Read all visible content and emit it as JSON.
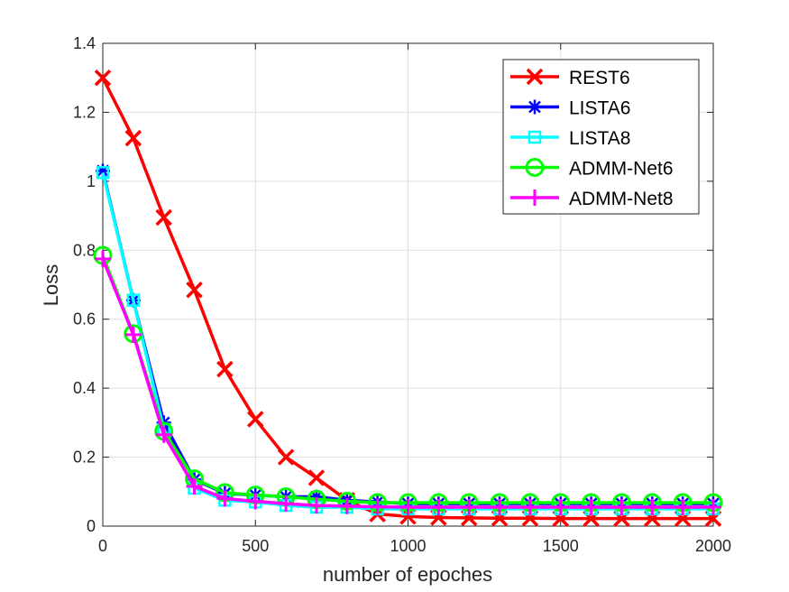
{
  "chart_data": {
    "type": "line",
    "title": "",
    "xlabel": "number of epoches",
    "ylabel": "Loss",
    "xlim": [
      0,
      2000
    ],
    "ylim": [
      0,
      1.4
    ],
    "xticks": [
      0,
      500,
      1000,
      1500,
      2000
    ],
    "xtick_labels": [
      "0",
      "500",
      "1000",
      "1500",
      "2000"
    ],
    "yticks": [
      0,
      0.2,
      0.4,
      0.6,
      0.8,
      1.0,
      1.2,
      1.4
    ],
    "ytick_labels": [
      "0",
      "0.2",
      "0.4",
      "0.6",
      "0.8",
      "1",
      "1.2",
      "1.4"
    ],
    "grid": true,
    "legend_position": "top-right",
    "x": [
      0,
      100,
      200,
      300,
      400,
      500,
      600,
      700,
      800,
      900,
      1000,
      1100,
      1200,
      1300,
      1400,
      1500,
      1600,
      1700,
      1800,
      1900,
      2000
    ],
    "series": [
      {
        "name": "REST6",
        "color": "#ff0000",
        "marker": "x",
        "values": [
          1.3,
          1.125,
          0.895,
          0.685,
          0.455,
          0.31,
          0.2,
          0.14,
          0.075,
          0.035,
          0.028,
          0.025,
          0.024,
          0.023,
          0.023,
          0.022,
          0.022,
          0.022,
          0.022,
          0.022,
          0.022
        ]
      },
      {
        "name": "LISTA6",
        "color": "#0000ff",
        "marker": "asterisk",
        "values": [
          1.03,
          0.655,
          0.3,
          0.135,
          0.095,
          0.09,
          0.085,
          0.085,
          0.075,
          0.07,
          0.065,
          0.065,
          0.065,
          0.065,
          0.065,
          0.065,
          0.065,
          0.065,
          0.065,
          0.065,
          0.065
        ]
      },
      {
        "name": "LISTA8",
        "color": "#00ffff",
        "marker": "square",
        "values": [
          1.025,
          0.655,
          0.28,
          0.11,
          0.075,
          0.07,
          0.06,
          0.055,
          0.055,
          0.05,
          0.05,
          0.05,
          0.05,
          0.05,
          0.05,
          0.05,
          0.05,
          0.05,
          0.05,
          0.05,
          0.05
        ]
      },
      {
        "name": "ADMM-Net6",
        "color": "#00ff00",
        "marker": "circle",
        "values": [
          0.785,
          0.558,
          0.275,
          0.137,
          0.097,
          0.09,
          0.085,
          0.078,
          0.072,
          0.068,
          0.068,
          0.068,
          0.068,
          0.068,
          0.068,
          0.068,
          0.068,
          0.068,
          0.068,
          0.068,
          0.068
        ]
      },
      {
        "name": "ADMM-Net8",
        "color": "#ff00ff",
        "marker": "plus",
        "values": [
          0.775,
          0.555,
          0.265,
          0.115,
          0.08,
          0.072,
          0.065,
          0.06,
          0.058,
          0.056,
          0.055,
          0.055,
          0.055,
          0.055,
          0.055,
          0.055,
          0.055,
          0.055,
          0.055,
          0.055,
          0.055
        ]
      }
    ]
  }
}
